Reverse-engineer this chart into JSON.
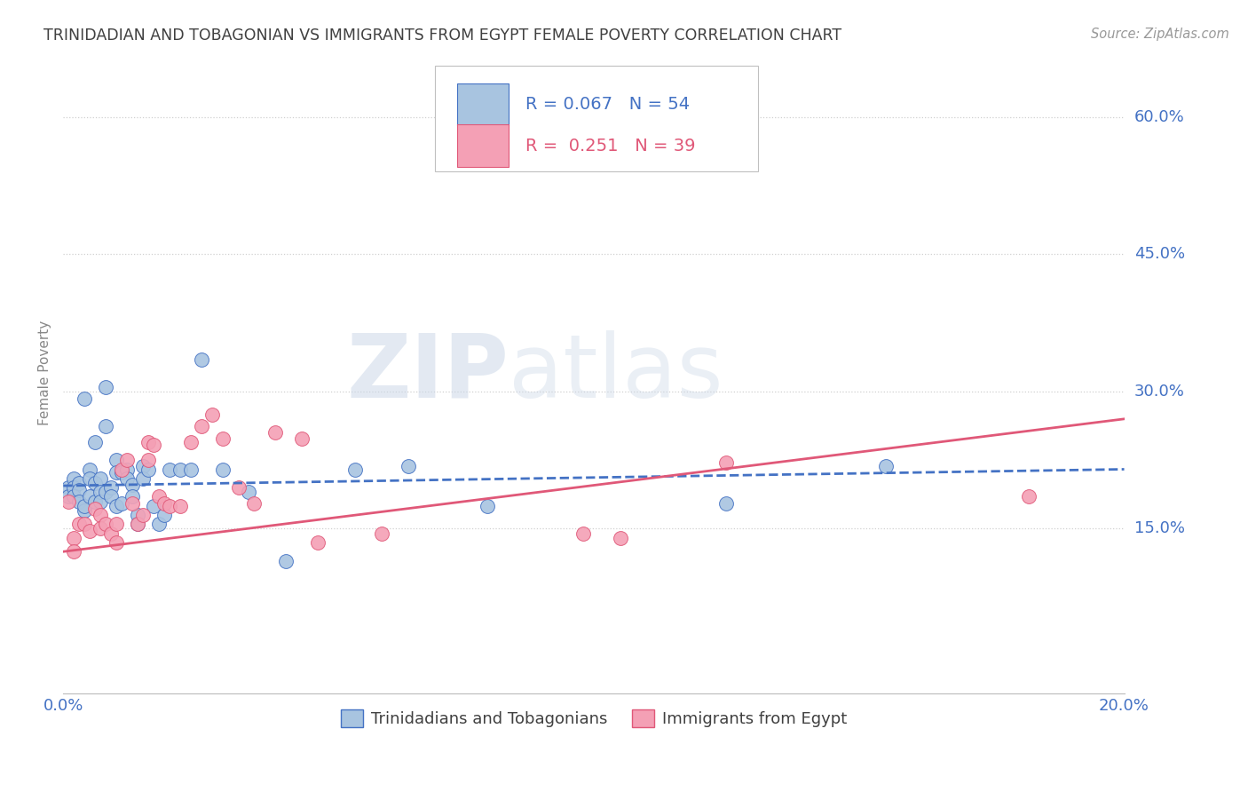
{
  "title": "TRINIDADIAN AND TOBAGONIAN VS IMMIGRANTS FROM EGYPT FEMALE POVERTY CORRELATION CHART",
  "source": "Source: ZipAtlas.com",
  "ylabel": "Female Poverty",
  "yticks_labels": [
    "15.0%",
    "30.0%",
    "45.0%",
    "60.0%"
  ],
  "ytick_vals": [
    0.15,
    0.3,
    0.45,
    0.6
  ],
  "xlim": [
    0.0,
    0.2
  ],
  "ylim": [
    -0.03,
    0.67
  ],
  "legend_R1": "0.067",
  "legend_N1": "54",
  "legend_R2": "0.251",
  "legend_N2": "39",
  "series1_label": "Trinidadians and Tobagonians",
  "series2_label": "Immigrants from Egypt",
  "color1": "#a8c4e0",
  "color2": "#f4a0b5",
  "line1_color": "#4472c4",
  "line2_color": "#e05878",
  "watermark_color": "#ccd8e8",
  "title_color": "#404040",
  "axis_label_color": "#4472c4",
  "scatter1_x": [
    0.001,
    0.001,
    0.002,
    0.002,
    0.002,
    0.003,
    0.003,
    0.003,
    0.004,
    0.004,
    0.004,
    0.005,
    0.005,
    0.005,
    0.006,
    0.006,
    0.006,
    0.007,
    0.007,
    0.007,
    0.008,
    0.008,
    0.008,
    0.009,
    0.009,
    0.01,
    0.01,
    0.01,
    0.011,
    0.011,
    0.012,
    0.012,
    0.013,
    0.013,
    0.014,
    0.014,
    0.015,
    0.015,
    0.016,
    0.017,
    0.018,
    0.019,
    0.02,
    0.022,
    0.024,
    0.026,
    0.03,
    0.035,
    0.042,
    0.055,
    0.065,
    0.08,
    0.125,
    0.155
  ],
  "scatter1_y": [
    0.195,
    0.185,
    0.205,
    0.195,
    0.185,
    0.2,
    0.192,
    0.18,
    0.17,
    0.292,
    0.175,
    0.215,
    0.205,
    0.185,
    0.2,
    0.245,
    0.18,
    0.205,
    0.19,
    0.18,
    0.19,
    0.305,
    0.262,
    0.195,
    0.185,
    0.225,
    0.212,
    0.175,
    0.212,
    0.178,
    0.215,
    0.205,
    0.198,
    0.185,
    0.165,
    0.155,
    0.218,
    0.205,
    0.215,
    0.175,
    0.155,
    0.165,
    0.215,
    0.215,
    0.215,
    0.335,
    0.215,
    0.19,
    0.115,
    0.215,
    0.218,
    0.175,
    0.178,
    0.218
  ],
  "scatter2_x": [
    0.001,
    0.002,
    0.002,
    0.003,
    0.004,
    0.005,
    0.006,
    0.007,
    0.007,
    0.008,
    0.009,
    0.01,
    0.01,
    0.011,
    0.012,
    0.013,
    0.014,
    0.015,
    0.016,
    0.016,
    0.017,
    0.018,
    0.019,
    0.02,
    0.022,
    0.024,
    0.026,
    0.028,
    0.03,
    0.033,
    0.036,
    0.04,
    0.045,
    0.048,
    0.06,
    0.098,
    0.105,
    0.125,
    0.182
  ],
  "scatter2_y": [
    0.18,
    0.14,
    0.125,
    0.155,
    0.155,
    0.148,
    0.172,
    0.165,
    0.15,
    0.155,
    0.145,
    0.135,
    0.155,
    0.215,
    0.225,
    0.178,
    0.155,
    0.165,
    0.245,
    0.225,
    0.242,
    0.185,
    0.178,
    0.175,
    0.175,
    0.245,
    0.262,
    0.275,
    0.248,
    0.195,
    0.178,
    0.255,
    0.248,
    0.135,
    0.145,
    0.145,
    0.14,
    0.222,
    0.185
  ],
  "trendline1_x": [
    0.0,
    0.2
  ],
  "trendline1_y": [
    0.197,
    0.215
  ],
  "trendline2_x": [
    0.0,
    0.2
  ],
  "trendline2_y": [
    0.125,
    0.27
  ],
  "grid_color": "#d0d0d0",
  "grid_linestyle": "dotted"
}
